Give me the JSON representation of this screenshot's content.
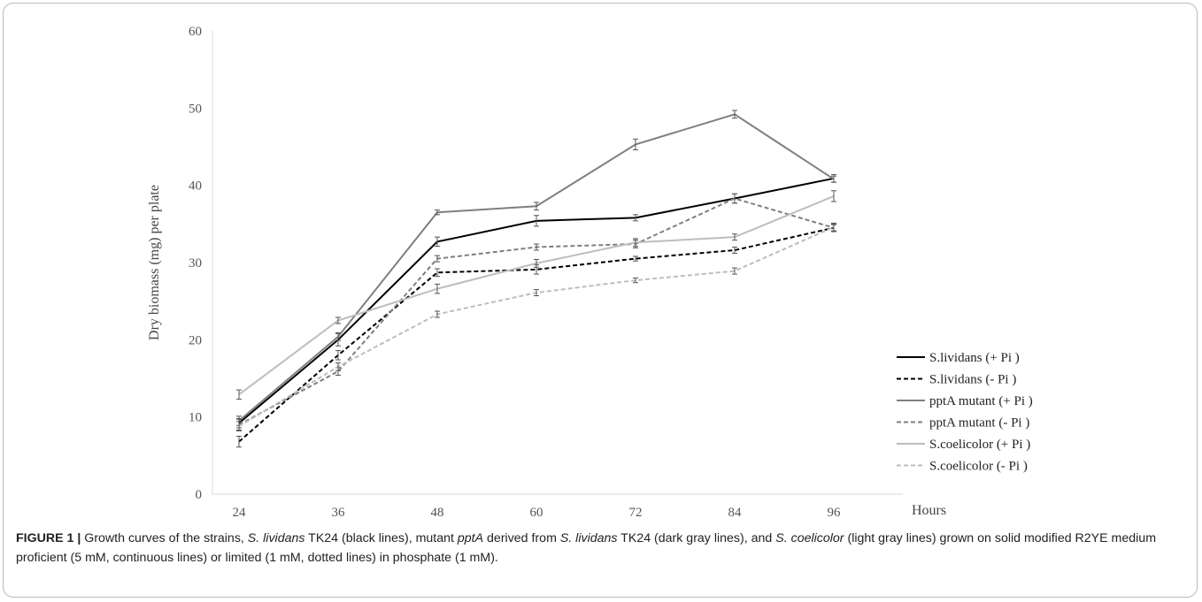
{
  "chart_data": {
    "type": "line",
    "xlabel": "Hours",
    "ylabel": "Dry biomass (mg) per plate",
    "x": [
      24,
      36,
      48,
      60,
      72,
      84,
      96
    ],
    "x_ticks": [
      "24",
      "36",
      "48",
      "60",
      "72",
      "84",
      "96"
    ],
    "y_ticks": [
      "0",
      "10",
      "20",
      "30",
      "40",
      "50",
      "60"
    ],
    "ylim": [
      0,
      60
    ],
    "grid": false,
    "legend_position": "right",
    "series": [
      {
        "name": "S.lividans (+ Pi )",
        "color": "#000000",
        "dashed": false,
        "values": [
          9.2,
          20.0,
          32.7,
          35.4,
          35.8,
          38.3,
          40.9
        ],
        "errors": [
          0.6,
          0.8,
          0.6,
          0.7,
          0.4,
          0.6,
          0.5
        ]
      },
      {
        "name": "S.lividans (- Pi )",
        "color": "#000000",
        "dashed": true,
        "values": [
          6.8,
          18.0,
          28.7,
          29.1,
          30.5,
          31.6,
          34.5
        ],
        "errors": [
          0.7,
          0.6,
          0.5,
          0.6,
          0.3,
          0.4,
          0.5
        ]
      },
      {
        "name": "pptA mutant (+ Pi )",
        "color": "#7f7f7f",
        "dashed": false,
        "values": [
          9.5,
          20.4,
          36.5,
          37.3,
          45.3,
          49.2,
          40.8
        ],
        "errors": [
          0.6,
          0.5,
          0.3,
          0.5,
          0.7,
          0.5,
          0.4
        ]
      },
      {
        "name": "pptA mutant (- Pi )",
        "color": "#7f7f7f",
        "dashed": true,
        "values": [
          9.0,
          15.9,
          30.5,
          32.0,
          32.4,
          38.3,
          34.5
        ],
        "errors": [
          0.7,
          0.5,
          0.4,
          0.4,
          0.5,
          0.6,
          0.4
        ]
      },
      {
        "name": "S.coelicolor (+ Pi )",
        "color": "#bdbdbd",
        "dashed": false,
        "values": [
          12.9,
          22.5,
          26.6,
          29.9,
          32.6,
          33.3,
          38.6
        ],
        "errors": [
          0.6,
          0.4,
          0.6,
          0.5,
          0.5,
          0.4,
          0.7
        ]
      },
      {
        "name": "S.coelicolor (- Pi )",
        "color": "#bdbdbd",
        "dashed": true,
        "values": [
          8.8,
          16.5,
          23.3,
          26.1,
          27.7,
          28.9,
          34.6
        ],
        "errors": [
          0.6,
          0.5,
          0.4,
          0.4,
          0.3,
          0.4,
          0.5
        ]
      }
    ]
  },
  "caption": {
    "label": "FIGURE 1 |",
    "text_1": " Growth curves of the strains, ",
    "sp_1": "S. lividans",
    "text_2": " TK24 (black lines), mutant ",
    "gene": "pptA",
    "text_3": " derived from ",
    "sp_2": "S. lividans",
    "text_4": " TK24 (dark gray lines), and ",
    "sp_3": "S. coelicolor",
    "text_5": " (light gray lines) grown on solid modified R2YE medium proficient (5 mM, continuous lines) or limited (1 mM, dotted lines) in phosphate (1 mM)."
  }
}
